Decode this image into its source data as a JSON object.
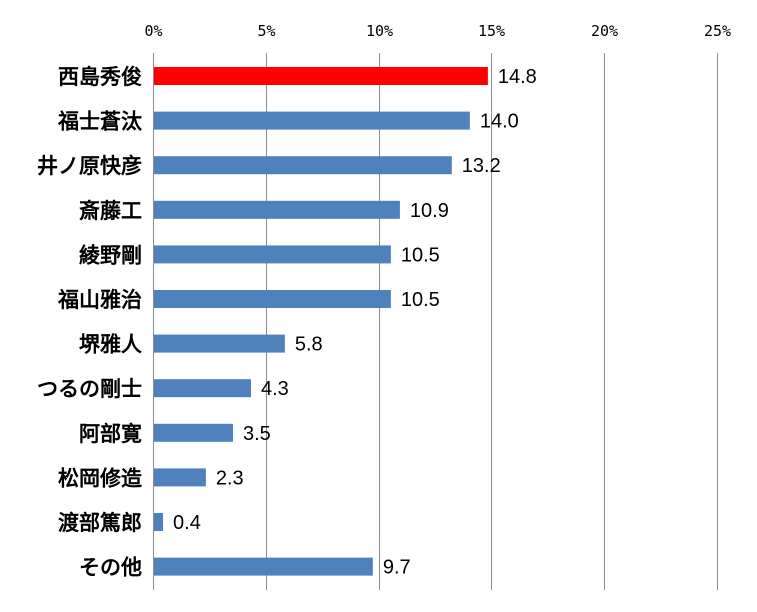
{
  "chart_data": {
    "type": "bar",
    "orientation": "horizontal",
    "categories": [
      "西島秀俊",
      "福士蒼汰",
      "井ノ原快彦",
      "斎藤工",
      "綾野剛",
      "福山雅治",
      "堺雅人",
      "つるの剛士",
      "阿部寛",
      "松岡修造",
      "渡部篤郎",
      "その他"
    ],
    "values": [
      14.8,
      14.0,
      13.2,
      10.9,
      10.5,
      10.5,
      5.8,
      4.3,
      3.5,
      2.3,
      0.4,
      9.7
    ],
    "value_labels": [
      "14.8",
      "14.0",
      "13.2",
      "10.9",
      "10.5",
      "10.5",
      "5.8",
      "4.3",
      "3.5",
      "2.3",
      "0.4",
      "9.7"
    ],
    "highlight_index": 0,
    "colors": {
      "bar": "#4f81bd",
      "highlight": "#ff0000"
    },
    "x_axis": {
      "position": "top",
      "ticks": [
        0,
        5,
        10,
        15,
        20,
        25
      ],
      "tick_labels": [
        "0%",
        "5%",
        "10%",
        "15%",
        "20%",
        "25%"
      ],
      "range": [
        0,
        25
      ]
    },
    "grid": true,
    "title": "",
    "xlabel": "",
    "ylabel": ""
  }
}
